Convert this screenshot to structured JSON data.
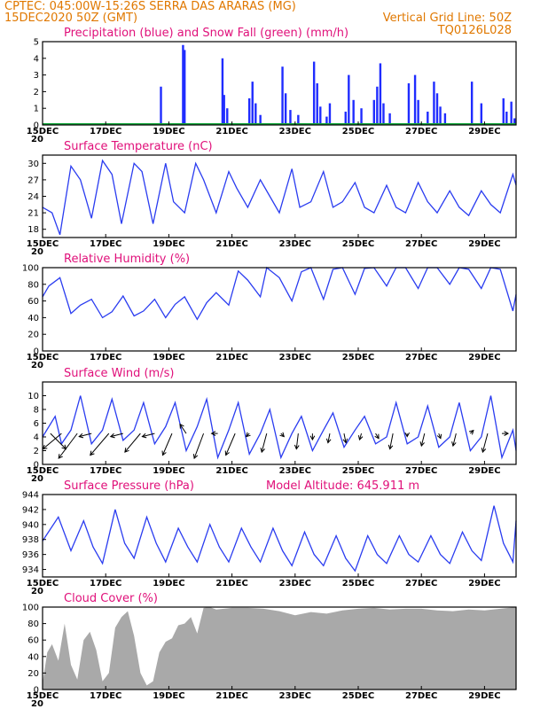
{
  "header": {
    "line1": "CPTEC:  045:00W-15:26S  SERRA DAS ARARAS (MG)",
    "line2_left": "15DEC2020 50Z (GMT)",
    "line2_right": "Vertical Grid Line: 50Z",
    "line3_right": "TQ0126L028"
  },
  "colors": {
    "header": "#e07800",
    "panel_title": "#e0107a",
    "series_line": "#2a3cf0",
    "precip_bar": "#1f2cff",
    "snow_line": "#12a83a",
    "wind_arrow": "#000000",
    "cloud_fill": "#a9a9a9"
  },
  "x_axis": {
    "start": "15DEC",
    "end": "30DEC",
    "tick_labels": [
      "15DEC",
      "17DEC",
      "19DEC",
      "21DEC",
      "23DEC",
      "25DEC",
      "27DEC",
      "29DEC"
    ],
    "tick_days": [
      15,
      17,
      19,
      21,
      23,
      25,
      27,
      29
    ],
    "cut_label": "20"
  },
  "chart_data": [
    {
      "type": "bar",
      "title": "Precipitation (blue) and Snow Fall (green) (mm/h)",
      "ylim": [
        0,
        5
      ],
      "yticks": [
        0,
        1,
        2,
        3,
        4,
        5
      ],
      "series": [
        {
          "name": "Precipitation",
          "x": [
            17.85,
            18.75,
            19.45,
            19.5,
            20.7,
            20.75,
            20.85,
            21.55,
            21.65,
            21.75,
            21.9,
            22.6,
            22.7,
            22.85,
            23.1,
            23.6,
            23.7,
            23.8,
            24.0,
            24.1,
            24.6,
            24.7,
            24.85,
            25.1,
            25.5,
            25.6,
            25.7,
            25.8,
            26.0,
            26.6,
            26.8,
            26.9,
            27.2,
            27.4,
            27.5,
            27.6,
            27.75,
            28.6,
            28.9,
            29.6,
            29.7,
            29.85,
            29.95
          ],
          "values": [
            0.1,
            2.3,
            4.8,
            4.5,
            4.0,
            1.8,
            1.0,
            1.6,
            2.6,
            1.3,
            0.6,
            3.5,
            1.9,
            0.9,
            0.6,
            3.8,
            2.5,
            1.1,
            0.5,
            1.3,
            0.8,
            3.0,
            1.5,
            1.0,
            1.5,
            2.3,
            3.7,
            1.3,
            0.7,
            2.5,
            3.0,
            1.5,
            0.8,
            2.6,
            1.9,
            1.1,
            0.7,
            2.6,
            1.3,
            1.6,
            0.8,
            1.4,
            0.4
          ]
        },
        {
          "name": "Snow Fall",
          "x": [
            15,
            30
          ],
          "values": [
            0,
            0
          ]
        }
      ]
    },
    {
      "type": "line",
      "title": "Surface Temperature (nC)",
      "ylim": [
        16.5,
        31.5
      ],
      "yticks": [
        18,
        21,
        24,
        27,
        30
      ],
      "x": [
        15.0,
        15.3,
        15.55,
        15.9,
        16.2,
        16.55,
        16.9,
        17.2,
        17.5,
        17.9,
        18.15,
        18.5,
        18.9,
        19.15,
        19.5,
        19.85,
        20.1,
        20.5,
        20.9,
        21.15,
        21.5,
        21.9,
        22.2,
        22.5,
        22.9,
        23.15,
        23.5,
        23.9,
        24.2,
        24.5,
        24.9,
        25.2,
        25.5,
        25.9,
        26.2,
        26.5,
        26.9,
        27.2,
        27.5,
        27.9,
        28.2,
        28.5,
        28.9,
        29.2,
        29.5,
        29.9,
        30.0
      ],
      "values": [
        22.0,
        21.0,
        17.0,
        29.5,
        27.0,
        20.0,
        30.5,
        28.0,
        19.0,
        30.0,
        28.5,
        19.0,
        30.0,
        23.0,
        21.0,
        30.0,
        27.0,
        21.0,
        28.5,
        25.5,
        22.0,
        27.0,
        24.0,
        21.0,
        29.0,
        22.0,
        23.0,
        28.5,
        22.0,
        23.0,
        26.5,
        22.0,
        21.0,
        26.0,
        22.0,
        21.0,
        26.5,
        23.0,
        21.0,
        25.0,
        22.0,
        20.5,
        25.0,
        22.5,
        21.0,
        28.0,
        26.0
      ]
    },
    {
      "type": "line",
      "title": "Relative Humidity (%)",
      "ylim": [
        0,
        100
      ],
      "yticks": [
        0,
        20,
        40,
        60,
        80,
        100
      ],
      "x": [
        15.0,
        15.2,
        15.55,
        15.9,
        16.2,
        16.55,
        16.9,
        17.2,
        17.55,
        17.9,
        18.2,
        18.55,
        18.9,
        19.2,
        19.5,
        19.9,
        20.2,
        20.5,
        20.9,
        21.2,
        21.5,
        21.9,
        22.1,
        22.5,
        22.9,
        23.2,
        23.5,
        23.9,
        24.2,
        24.5,
        24.9,
        25.2,
        25.5,
        25.9,
        26.2,
        26.5,
        26.9,
        27.2,
        27.5,
        27.9,
        28.2,
        28.5,
        28.9,
        29.2,
        29.5,
        29.9,
        30.0
      ],
      "values": [
        65.0,
        78.0,
        88.0,
        45.0,
        55.0,
        62.0,
        40.0,
        47.0,
        66.0,
        42.0,
        48.0,
        62.0,
        40.0,
        56.0,
        65.0,
        38.0,
        58.0,
        70.0,
        55.0,
        96.0,
        85.0,
        65.0,
        100.0,
        88.0,
        60.0,
        95.0,
        100.0,
        62.0,
        98.0,
        100.0,
        68.0,
        99.0,
        100.0,
        78.0,
        100.0,
        100.0,
        75.0,
        100.0,
        100.0,
        80.0,
        100.0,
        98.0,
        75.0,
        100.0,
        98.0,
        48.0,
        68.0
      ]
    },
    {
      "type": "line",
      "title": "Surface Wind (m/s)",
      "ylim": [
        0,
        12
      ],
      "yticks": [
        0,
        2,
        4,
        6,
        8,
        10
      ],
      "x": [
        15.0,
        15.4,
        15.6,
        15.9,
        16.2,
        16.55,
        16.9,
        17.2,
        17.55,
        17.9,
        18.2,
        18.55,
        18.9,
        19.2,
        19.55,
        19.9,
        20.2,
        20.55,
        20.9,
        21.2,
        21.55,
        21.9,
        22.2,
        22.55,
        22.9,
        23.2,
        23.55,
        23.9,
        24.2,
        24.55,
        24.9,
        25.2,
        25.55,
        25.9,
        26.2,
        26.55,
        26.9,
        27.2,
        27.55,
        27.9,
        28.2,
        28.55,
        28.9,
        29.2,
        29.55,
        29.9,
        30.0
      ],
      "values": [
        4.0,
        7.0,
        3.0,
        5.0,
        10.0,
        3.0,
        5.0,
        9.5,
        3.5,
        5.0,
        9.0,
        3.0,
        5.5,
        9.0,
        2.0,
        5.5,
        9.5,
        1.0,
        5.0,
        9.0,
        1.5,
        4.5,
        8.0,
        1.0,
        4.5,
        7.0,
        2.0,
        5.0,
        7.5,
        2.5,
        5.0,
        7.0,
        3.0,
        4.0,
        9.0,
        3.0,
        4.0,
        8.5,
        2.5,
        4.0,
        9.0,
        2.0,
        4.0,
        10.0,
        1.0,
        5.0,
        2.0
      ],
      "arrows": [
        {
          "x": 15.25,
          "u": 2.5,
          "v": -2.5
        },
        {
          "x": 15.6,
          "u": -3.0,
          "v": -2.5
        },
        {
          "x": 16.1,
          "u": -3.0,
          "v": -4.0
        },
        {
          "x": 16.55,
          "u": -2.0,
          "v": -0.5
        },
        {
          "x": 17.1,
          "u": -3.0,
          "v": -3.5
        },
        {
          "x": 17.55,
          "u": -2.0,
          "v": -0.5
        },
        {
          "x": 18.1,
          "u": -2.5,
          "v": -3.0
        },
        {
          "x": 18.55,
          "u": -2.0,
          "v": -0.5
        },
        {
          "x": 19.1,
          "u": -1.5,
          "v": -3.5
        },
        {
          "x": 19.55,
          "u": -1.0,
          "v": 1.5
        },
        {
          "x": 20.1,
          "u": -1.5,
          "v": -4.0
        },
        {
          "x": 20.55,
          "u": -1.0,
          "v": 0.0
        },
        {
          "x": 21.1,
          "u": -1.5,
          "v": -3.5
        },
        {
          "x": 21.55,
          "u": -0.5,
          "v": -0.5
        },
        {
          "x": 22.1,
          "u": -0.8,
          "v": -3.0
        },
        {
          "x": 22.55,
          "u": 0.5,
          "v": -0.5
        },
        {
          "x": 23.1,
          "u": -0.3,
          "v": -2.5
        },
        {
          "x": 23.55,
          "u": 0.0,
          "v": -1.0
        },
        {
          "x": 24.1,
          "u": -0.3,
          "v": -1.5
        },
        {
          "x": 24.55,
          "u": 0.3,
          "v": -1.5
        },
        {
          "x": 25.1,
          "u": -0.3,
          "v": -1.0
        },
        {
          "x": 25.55,
          "u": 0.5,
          "v": -0.8
        },
        {
          "x": 26.1,
          "u": -0.5,
          "v": -2.5
        },
        {
          "x": 26.55,
          "u": 0.0,
          "v": -0.5
        },
        {
          "x": 27.1,
          "u": -0.5,
          "v": -2.0
        },
        {
          "x": 27.55,
          "u": 0.3,
          "v": -0.8
        },
        {
          "x": 28.1,
          "u": -0.5,
          "v": -2.0
        },
        {
          "x": 28.55,
          "u": 0.5,
          "v": 0.5
        },
        {
          "x": 29.1,
          "u": -0.8,
          "v": -3.0
        },
        {
          "x": 29.55,
          "u": 1.0,
          "v": 0.0
        }
      ]
    },
    {
      "type": "line",
      "title": "Surface Pressure (hPa)",
      "annotation": "Model Altitude: 645.911  m",
      "ylim": [
        933,
        944
      ],
      "yticks": [
        934,
        936,
        938,
        940,
        942,
        944
      ],
      "x": [
        15.0,
        15.5,
        15.9,
        16.3,
        16.6,
        16.9,
        17.3,
        17.6,
        17.9,
        18.3,
        18.6,
        18.9,
        19.3,
        19.6,
        19.9,
        20.3,
        20.6,
        20.9,
        21.3,
        21.6,
        21.9,
        22.3,
        22.6,
        22.9,
        23.3,
        23.6,
        23.9,
        24.3,
        24.6,
        24.9,
        25.3,
        25.6,
        25.9,
        26.3,
        26.6,
        26.9,
        27.3,
        27.6,
        27.9,
        28.3,
        28.6,
        28.9,
        29.3,
        29.6,
        29.9,
        30.0
      ],
      "values": [
        937.8,
        941.0,
        936.5,
        940.5,
        937.0,
        934.8,
        942.0,
        937.5,
        935.5,
        941.0,
        937.5,
        935.0,
        939.5,
        937.0,
        935.0,
        940.0,
        937.0,
        935.0,
        939.5,
        937.0,
        935.0,
        939.5,
        936.5,
        934.5,
        939.0,
        936.0,
        934.5,
        938.5,
        935.5,
        933.8,
        938.5,
        936.0,
        934.8,
        938.5,
        936.0,
        935.0,
        938.5,
        936.0,
        934.8,
        939.0,
        936.5,
        935.2,
        942.5,
        937.5,
        935.0,
        940.5
      ]
    },
    {
      "type": "area",
      "title": "Cloud Cover (%)",
      "ylim": [
        0,
        100
      ],
      "yticks": [
        0,
        20,
        40,
        60,
        80,
        100
      ],
      "x": [
        15.0,
        15.15,
        15.3,
        15.5,
        15.7,
        15.9,
        16.1,
        16.3,
        16.5,
        16.7,
        16.9,
        17.1,
        17.3,
        17.5,
        17.7,
        17.9,
        18.1,
        18.3,
        18.5,
        18.7,
        18.9,
        19.1,
        19.3,
        19.5,
        19.7,
        19.9,
        20.1,
        20.3,
        20.5,
        21.0,
        21.5,
        22.0,
        22.5,
        23.0,
        23.5,
        24.0,
        24.5,
        25.0,
        25.5,
        26.0,
        26.5,
        27.0,
        27.5,
        28.0,
        28.5,
        29.0,
        29.5,
        30.0
      ],
      "values": [
        8,
        45,
        55,
        35,
        80,
        30,
        12,
        60,
        70,
        48,
        10,
        20,
        75,
        88,
        95,
        65,
        20,
        5,
        10,
        45,
        58,
        62,
        78,
        80,
        88,
        68,
        99,
        100,
        97,
        99,
        99,
        98,
        95,
        90,
        94,
        92,
        96,
        98,
        99,
        97,
        98,
        98,
        96,
        95,
        97,
        96,
        98,
        100
      ]
    }
  ]
}
